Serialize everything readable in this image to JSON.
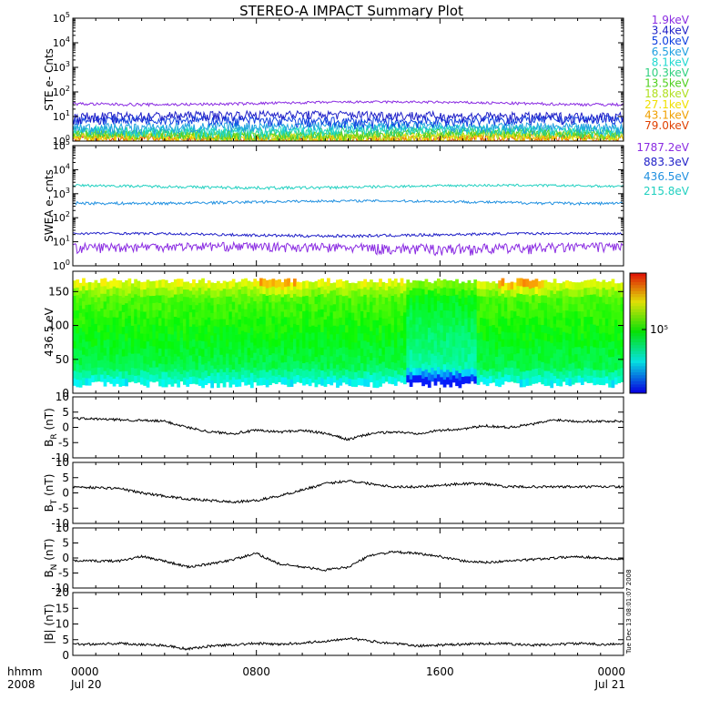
{
  "title": "STEREO-A IMPACT Summary Plot",
  "timestamp": "Tue Dec 13 08:01:07 2008",
  "time_axis": {
    "corner_top": "hhmm",
    "corner_bottom": "2008",
    "ticks": [
      {
        "t": 0,
        "label": "0000",
        "date": "Jul 20"
      },
      {
        "t": 8,
        "label": "0800",
        "date": ""
      },
      {
        "t": 16,
        "label": "1600",
        "date": ""
      },
      {
        "t": 24,
        "label": "0000",
        "date": "Jul 21"
      }
    ]
  },
  "chart_data": [
    {
      "type": "line",
      "ylabel": "STE e- Cnts",
      "yscale": "log",
      "ylim": [
        1,
        100000
      ],
      "yticks": [
        {
          "v": 1,
          "e": "0"
        },
        {
          "v": 10,
          "e": "1"
        },
        {
          "v": 100,
          "e": "2"
        },
        {
          "v": 1000,
          "e": "3"
        },
        {
          "v": 10000,
          "e": "4"
        },
        {
          "v": 100000,
          "e": "5"
        }
      ],
      "series": [
        {
          "name": "1.9keV",
          "color": "#8a2be2",
          "level": 35
        },
        {
          "name": "3.4keV",
          "color": "#2020c8",
          "level": 11
        },
        {
          "name": "5.0keV",
          "color": "#1040e0",
          "level": 7
        },
        {
          "name": "6.5keV",
          "color": "#20a0e0",
          "level": 4
        },
        {
          "name": "8.1keV",
          "color": "#20d8d0",
          "level": 3
        },
        {
          "name": "10.3keV",
          "color": "#30d080",
          "level": 2.5
        },
        {
          "name": "13.5keV",
          "color": "#50d020",
          "level": 2
        },
        {
          "name": "18.8keV",
          "color": "#b0e020",
          "level": 1.7
        },
        {
          "name": "27.1keV",
          "color": "#f0e000",
          "level": 1.5
        },
        {
          "name": "43.1keV",
          "color": "#f0a000",
          "level": 1.3
        },
        {
          "name": "79.0keV",
          "color": "#e04000",
          "level": 1.2
        }
      ]
    },
    {
      "type": "line",
      "ylabel": "SWEA e- cnts",
      "yscale": "log",
      "ylim": [
        1,
        100000
      ],
      "yticks": [
        {
          "v": 1,
          "e": "0"
        },
        {
          "v": 10,
          "e": "1"
        },
        {
          "v": 100,
          "e": "2"
        },
        {
          "v": 1000,
          "e": "3"
        },
        {
          "v": 10000,
          "e": "4"
        },
        {
          "v": 100000,
          "e": "5"
        }
      ],
      "series": [
        {
          "name": "1787.2eV",
          "color": "#8a2be2",
          "level": 6
        },
        {
          "name": "883.3eV",
          "color": "#2020c8",
          "level": 20
        },
        {
          "name": "436.5eV",
          "color": "#2090e0",
          "level": 450
        },
        {
          "name": "215.8eV",
          "color": "#20d0c0",
          "level": 2000
        }
      ]
    },
    {
      "type": "heatmap",
      "ylabel": "436.5 eV",
      "ylim": [
        0,
        180
      ],
      "yticks": [
        0,
        50,
        100,
        150
      ],
      "colorbar_label": "10⁵"
    },
    {
      "type": "line",
      "ylabel": "B_R (nT)",
      "ylim": [
        -10,
        10
      ],
      "yticks": [
        -10,
        -5,
        0,
        5,
        10
      ],
      "series": [
        {
          "name": "",
          "points": [
            [
              0,
              3
            ],
            [
              2,
              2.5
            ],
            [
              4,
              2
            ],
            [
              5,
              0
            ],
            [
              6,
              -1.5
            ],
            [
              7,
              -2
            ],
            [
              8,
              -1
            ],
            [
              9,
              -1.5
            ],
            [
              10,
              -1
            ],
            [
              11,
              -2
            ],
            [
              12,
              -4
            ],
            [
              13,
              -2
            ],
            [
              14,
              -1.5
            ],
            [
              15,
              -2
            ],
            [
              16,
              -1
            ],
            [
              17,
              -0.5
            ],
            [
              18,
              0.5
            ],
            [
              19,
              0
            ],
            [
              20,
              1
            ],
            [
              21,
              2.5
            ],
            [
              22,
              2
            ],
            [
              23,
              2
            ],
            [
              24,
              2
            ]
          ]
        }
      ]
    },
    {
      "type": "line",
      "ylabel": "B_T (nT)",
      "ylim": [
        -10,
        10
      ],
      "yticks": [
        -10,
        -5,
        0,
        5,
        10
      ],
      "series": [
        {
          "name": "",
          "points": [
            [
              0,
              2
            ],
            [
              2,
              1.5
            ],
            [
              3,
              0
            ],
            [
              4,
              -1
            ],
            [
              5,
              -2
            ],
            [
              6,
              -2.5
            ],
            [
              7,
              -3
            ],
            [
              8,
              -2.5
            ],
            [
              9,
              -1
            ],
            [
              10,
              1
            ],
            [
              11,
              3
            ],
            [
              12,
              4
            ],
            [
              13,
              3
            ],
            [
              14,
              2
            ],
            [
              15,
              2
            ],
            [
              16,
              2.5
            ],
            [
              17,
              3
            ],
            [
              18,
              3
            ],
            [
              19,
              2
            ],
            [
              20,
              2
            ],
            [
              21,
              2
            ],
            [
              22,
              2
            ],
            [
              23,
              2
            ],
            [
              24,
              2
            ]
          ]
        }
      ]
    },
    {
      "type": "line",
      "ylabel": "B_N (nT)",
      "ylim": [
        -10,
        10
      ],
      "yticks": [
        -10,
        -5,
        0,
        5,
        10
      ],
      "series": [
        {
          "name": "",
          "points": [
            [
              0,
              -1
            ],
            [
              2,
              -1
            ],
            [
              3,
              0.5
            ],
            [
              4,
              -1
            ],
            [
              5,
              -3
            ],
            [
              6,
              -2
            ],
            [
              7,
              -0.5
            ],
            [
              8,
              1.5
            ],
            [
              9,
              -2
            ],
            [
              10,
              -3
            ],
            [
              11,
              -4
            ],
            [
              12,
              -3
            ],
            [
              13,
              1
            ],
            [
              14,
              2
            ],
            [
              15,
              1.5
            ],
            [
              16,
              0.5
            ],
            [
              17,
              -1
            ],
            [
              18,
              -1.5
            ],
            [
              19,
              -1
            ],
            [
              20,
              -0.5
            ],
            [
              21,
              0
            ],
            [
              22,
              0.5
            ],
            [
              23,
              0
            ],
            [
              24,
              -0.5
            ]
          ]
        }
      ]
    },
    {
      "type": "line",
      "ylabel": "|B| (nT)",
      "ylim": [
        0,
        20
      ],
      "yticks": [
        0,
        5,
        10,
        15,
        20
      ],
      "series": [
        {
          "name": "",
          "points": [
            [
              0,
              3.5
            ],
            [
              2,
              3.8
            ],
            [
              4,
              3.2
            ],
            [
              5,
              2
            ],
            [
              6,
              3
            ],
            [
              7,
              3.4
            ],
            [
              8,
              3.8
            ],
            [
              9,
              3.5
            ],
            [
              10,
              4
            ],
            [
              11,
              4.5
            ],
            [
              12,
              5.5
            ],
            [
              13,
              4.5
            ],
            [
              14,
              3.8
            ],
            [
              15,
              3
            ],
            [
              16,
              3.3
            ],
            [
              17,
              3.5
            ],
            [
              18,
              3.8
            ],
            [
              19,
              3.7
            ],
            [
              20,
              3.2
            ],
            [
              21,
              3.5
            ],
            [
              22,
              3.8
            ],
            [
              23,
              3.5
            ],
            [
              24,
              3.6
            ]
          ]
        }
      ]
    }
  ]
}
